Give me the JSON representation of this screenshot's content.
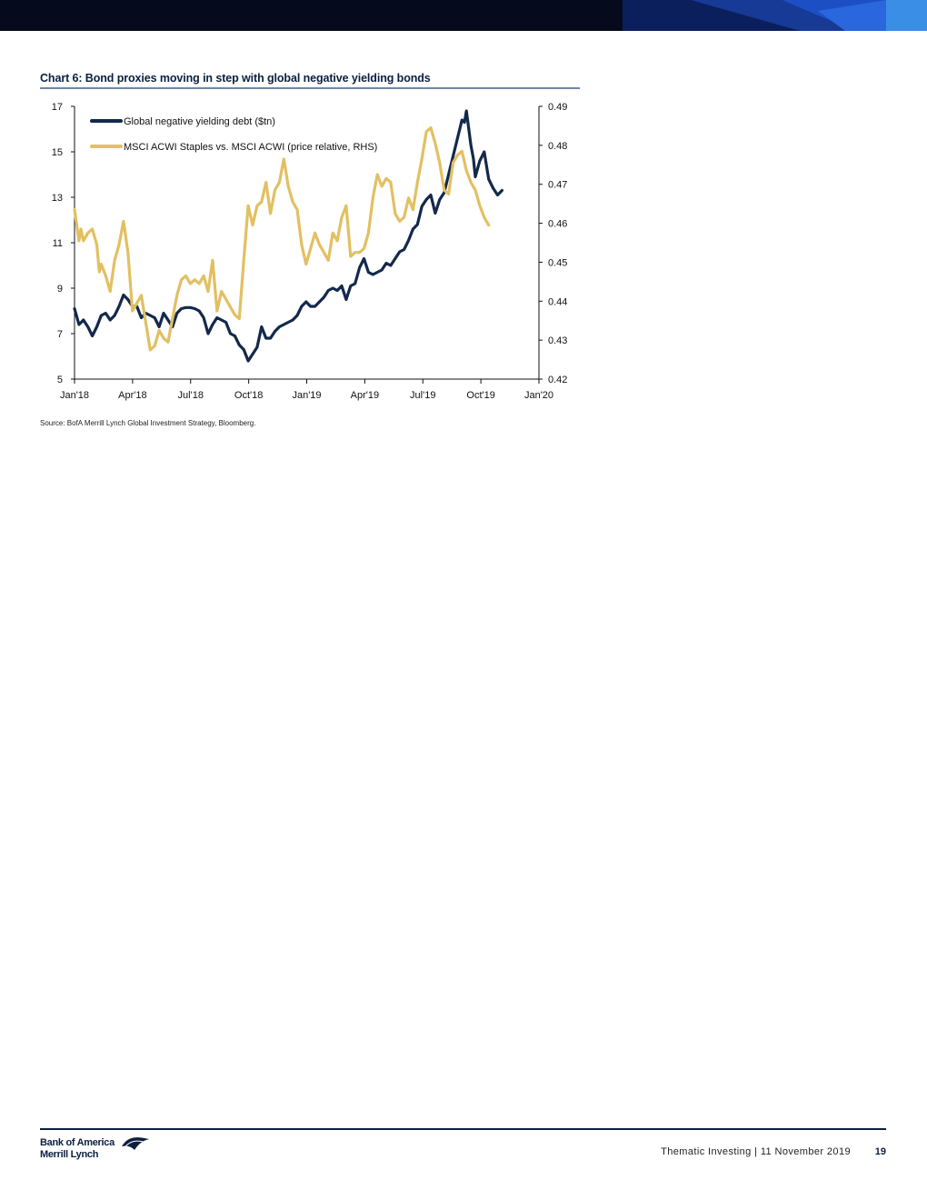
{
  "chart": {
    "title": "Chart 6: Bond proxies moving in step with global negative yielding bonds",
    "source": "Source:  BofA Merrill Lynch Global Investment Strategy, Bloomberg."
  },
  "chart_data": {
    "type": "line",
    "title": "Chart 6: Bond proxies moving in step with global negative yielding bonds",
    "x_ticks": [
      "Jan'18",
      "Apr'18",
      "Jul'18",
      "Oct'18",
      "Jan'19",
      "Apr'19",
      "Jul'19",
      "Oct'19",
      "Jan'20"
    ],
    "xlim": [
      "2018-01-01",
      "2020-01-01"
    ],
    "left_axis": {
      "ylim": [
        5,
        17
      ],
      "ticks": [
        "5",
        "7",
        "9",
        "11",
        "13",
        "15",
        "17"
      ]
    },
    "right_axis": {
      "ylim": [
        0.42,
        0.49
      ],
      "ticks": [
        "0.42",
        "0.43",
        "0.44",
        "0.45",
        "0.46",
        "0.47",
        "0.48",
        "0.49"
      ]
    },
    "legend_position": "top-left",
    "grid": false,
    "series": [
      {
        "name": "Global negative yielding debt ($tn)",
        "axis": "left",
        "color": "#13294b",
        "points": [
          [
            "2018-01-01",
            8.1
          ],
          [
            "2018-01-08",
            7.4
          ],
          [
            "2018-01-15",
            7.6
          ],
          [
            "2018-01-22",
            7.3
          ],
          [
            "2018-01-29",
            6.9
          ],
          [
            "2018-02-05",
            7.3
          ],
          [
            "2018-02-12",
            7.8
          ],
          [
            "2018-02-19",
            7.9
          ],
          [
            "2018-02-26",
            7.6
          ],
          [
            "2018-03-05",
            7.8
          ],
          [
            "2018-03-12",
            8.2
          ],
          [
            "2018-03-19",
            8.7
          ],
          [
            "2018-03-26",
            8.5
          ],
          [
            "2018-04-02",
            8.2
          ],
          [
            "2018-04-09",
            8.2
          ],
          [
            "2018-04-16",
            7.7
          ],
          [
            "2018-04-23",
            7.9
          ],
          [
            "2018-04-30",
            7.8
          ],
          [
            "2018-05-07",
            7.7
          ],
          [
            "2018-05-14",
            7.3
          ],
          [
            "2018-05-21",
            7.9
          ],
          [
            "2018-05-28",
            7.6
          ],
          [
            "2018-06-04",
            7.3
          ],
          [
            "2018-06-11",
            7.9
          ],
          [
            "2018-06-18",
            8.1
          ],
          [
            "2018-06-25",
            8.15
          ],
          [
            "2018-07-02",
            8.15
          ],
          [
            "2018-07-09",
            8.1
          ],
          [
            "2018-07-16",
            8.0
          ],
          [
            "2018-07-23",
            7.7
          ],
          [
            "2018-07-30",
            7.0
          ],
          [
            "2018-08-06",
            7.4
          ],
          [
            "2018-08-13",
            7.7
          ],
          [
            "2018-08-20",
            7.6
          ],
          [
            "2018-08-27",
            7.5
          ],
          [
            "2018-09-03",
            7.0
          ],
          [
            "2018-09-10",
            6.9
          ],
          [
            "2018-09-17",
            6.5
          ],
          [
            "2018-09-24",
            6.3
          ],
          [
            "2018-10-01",
            5.8
          ],
          [
            "2018-10-08",
            6.1
          ],
          [
            "2018-10-15",
            6.4
          ],
          [
            "2018-10-22",
            7.3
          ],
          [
            "2018-10-29",
            6.8
          ],
          [
            "2018-11-05",
            6.8
          ],
          [
            "2018-11-12",
            7.1
          ],
          [
            "2018-11-19",
            7.3
          ],
          [
            "2018-11-26",
            7.4
          ],
          [
            "2018-12-03",
            7.5
          ],
          [
            "2018-12-10",
            7.6
          ],
          [
            "2018-12-17",
            7.8
          ],
          [
            "2018-12-24",
            8.2
          ],
          [
            "2018-12-31",
            8.4
          ],
          [
            "2019-01-07",
            8.2
          ],
          [
            "2019-01-14",
            8.2
          ],
          [
            "2019-01-21",
            8.4
          ],
          [
            "2019-01-28",
            8.6
          ],
          [
            "2019-02-04",
            8.9
          ],
          [
            "2019-02-11",
            9.0
          ],
          [
            "2019-02-18",
            8.9
          ],
          [
            "2019-02-25",
            9.1
          ],
          [
            "2019-03-04",
            8.5
          ],
          [
            "2019-03-11",
            9.1
          ],
          [
            "2019-03-18",
            9.2
          ],
          [
            "2019-03-25",
            9.9
          ],
          [
            "2019-04-01",
            10.3
          ],
          [
            "2019-04-08",
            9.7
          ],
          [
            "2019-04-15",
            9.6
          ],
          [
            "2019-04-22",
            9.7
          ],
          [
            "2019-04-29",
            9.8
          ],
          [
            "2019-05-06",
            10.1
          ],
          [
            "2019-05-13",
            10.0
          ],
          [
            "2019-05-20",
            10.3
          ],
          [
            "2019-05-27",
            10.6
          ],
          [
            "2019-06-03",
            10.7
          ],
          [
            "2019-06-10",
            11.1
          ],
          [
            "2019-06-17",
            11.6
          ],
          [
            "2019-06-24",
            11.8
          ],
          [
            "2019-07-01",
            12.6
          ],
          [
            "2019-07-08",
            12.9
          ],
          [
            "2019-07-15",
            13.1
          ],
          [
            "2019-07-22",
            12.3
          ],
          [
            "2019-07-29",
            12.9
          ],
          [
            "2019-08-05",
            13.2
          ],
          [
            "2019-08-12",
            14.0
          ],
          [
            "2019-08-19",
            14.8
          ],
          [
            "2019-08-26",
            15.6
          ],
          [
            "2019-09-02",
            16.4
          ],
          [
            "2019-09-06",
            16.3
          ],
          [
            "2019-09-09",
            16.8
          ],
          [
            "2019-09-16",
            15.3
          ],
          [
            "2019-09-20",
            14.7
          ],
          [
            "2019-09-23",
            13.9
          ],
          [
            "2019-09-30",
            14.6
          ],
          [
            "2019-10-07",
            15.0
          ],
          [
            "2019-10-14",
            13.8
          ],
          [
            "2019-10-21",
            13.4
          ],
          [
            "2019-10-28",
            13.1
          ],
          [
            "2019-11-04",
            13.3
          ]
        ]
      },
      {
        "name": "MSCI ACWI Staples vs. MSCI ACWI (price relative, RHS)",
        "axis": "right",
        "color": "#e2c062",
        "points": [
          [
            "2018-01-01",
            0.4635
          ],
          [
            "2018-01-08",
            0.4555
          ],
          [
            "2018-01-11",
            0.4585
          ],
          [
            "2018-01-15",
            0.4555
          ],
          [
            "2018-01-22",
            0.4575
          ],
          [
            "2018-01-29",
            0.4585
          ],
          [
            "2018-02-05",
            0.4545
          ],
          [
            "2018-02-09",
            0.4475
          ],
          [
            "2018-02-12",
            0.4495
          ],
          [
            "2018-02-19",
            0.4465
          ],
          [
            "2018-02-26",
            0.4425
          ],
          [
            "2018-03-05",
            0.4505
          ],
          [
            "2018-03-12",
            0.4545
          ],
          [
            "2018-03-19",
            0.4605
          ],
          [
            "2018-03-26",
            0.4525
          ],
          [
            "2018-04-02",
            0.4375
          ],
          [
            "2018-04-09",
            0.4395
          ],
          [
            "2018-04-16",
            0.4415
          ],
          [
            "2018-04-23",
            0.4345
          ],
          [
            "2018-04-30",
            0.4275
          ],
          [
            "2018-05-07",
            0.4285
          ],
          [
            "2018-05-14",
            0.4325
          ],
          [
            "2018-05-21",
            0.4305
          ],
          [
            "2018-05-28",
            0.4295
          ],
          [
            "2018-06-04",
            0.4355
          ],
          [
            "2018-06-11",
            0.4415
          ],
          [
            "2018-06-18",
            0.4455
          ],
          [
            "2018-06-25",
            0.4465
          ],
          [
            "2018-07-02",
            0.4445
          ],
          [
            "2018-07-09",
            0.4455
          ],
          [
            "2018-07-16",
            0.4445
          ],
          [
            "2018-07-23",
            0.4465
          ],
          [
            "2018-07-30",
            0.4425
          ],
          [
            "2018-08-06",
            0.4505
          ],
          [
            "2018-08-13",
            0.4375
          ],
          [
            "2018-08-20",
            0.4425
          ],
          [
            "2018-08-27",
            0.4405
          ],
          [
            "2018-09-03",
            0.4385
          ],
          [
            "2018-09-10",
            0.4365
          ],
          [
            "2018-09-17",
            0.4355
          ],
          [
            "2018-09-24",
            0.4505
          ],
          [
            "2018-10-01",
            0.4645
          ],
          [
            "2018-10-08",
            0.4595
          ],
          [
            "2018-10-15",
            0.4645
          ],
          [
            "2018-10-22",
            0.4655
          ],
          [
            "2018-10-29",
            0.4705
          ],
          [
            "2018-11-05",
            0.4625
          ],
          [
            "2018-11-12",
            0.4685
          ],
          [
            "2018-11-19",
            0.4705
          ],
          [
            "2018-11-26",
            0.4765
          ],
          [
            "2018-12-03",
            0.4695
          ],
          [
            "2018-12-10",
            0.4655
          ],
          [
            "2018-12-17",
            0.4635
          ],
          [
            "2018-12-24",
            0.4545
          ],
          [
            "2018-12-31",
            0.4495
          ],
          [
            "2019-01-07",
            0.4535
          ],
          [
            "2019-01-14",
            0.4575
          ],
          [
            "2019-01-21",
            0.4545
          ],
          [
            "2019-01-28",
            0.4525
          ],
          [
            "2019-02-04",
            0.4505
          ],
          [
            "2019-02-11",
            0.4575
          ],
          [
            "2019-02-18",
            0.4555
          ],
          [
            "2019-02-25",
            0.4615
          ],
          [
            "2019-03-04",
            0.4645
          ],
          [
            "2019-03-11",
            0.4515
          ],
          [
            "2019-03-18",
            0.4525
          ],
          [
            "2019-03-25",
            0.4525
          ],
          [
            "2019-04-01",
            0.4535
          ],
          [
            "2019-04-08",
            0.4575
          ],
          [
            "2019-04-15",
            0.4665
          ],
          [
            "2019-04-22",
            0.4725
          ],
          [
            "2019-04-29",
            0.4695
          ],
          [
            "2019-05-06",
            0.4715
          ],
          [
            "2019-05-13",
            0.4705
          ],
          [
            "2019-05-20",
            0.4625
          ],
          [
            "2019-05-27",
            0.4605
          ],
          [
            "2019-06-03",
            0.4615
          ],
          [
            "2019-06-10",
            0.4665
          ],
          [
            "2019-06-17",
            0.4635
          ],
          [
            "2019-06-24",
            0.4705
          ],
          [
            "2019-07-01",
            0.4765
          ],
          [
            "2019-07-08",
            0.4835
          ],
          [
            "2019-07-15",
            0.4845
          ],
          [
            "2019-07-22",
            0.4805
          ],
          [
            "2019-07-29",
            0.4755
          ],
          [
            "2019-08-05",
            0.4685
          ],
          [
            "2019-08-12",
            0.4675
          ],
          [
            "2019-08-19",
            0.4755
          ],
          [
            "2019-08-26",
            0.4775
          ],
          [
            "2019-09-02",
            0.4785
          ],
          [
            "2019-09-09",
            0.4735
          ],
          [
            "2019-09-16",
            0.4705
          ],
          [
            "2019-09-23",
            0.4685
          ],
          [
            "2019-09-30",
            0.4645
          ],
          [
            "2019-10-07",
            0.4615
          ],
          [
            "2019-10-14",
            0.4595
          ]
        ]
      }
    ]
  }
}
